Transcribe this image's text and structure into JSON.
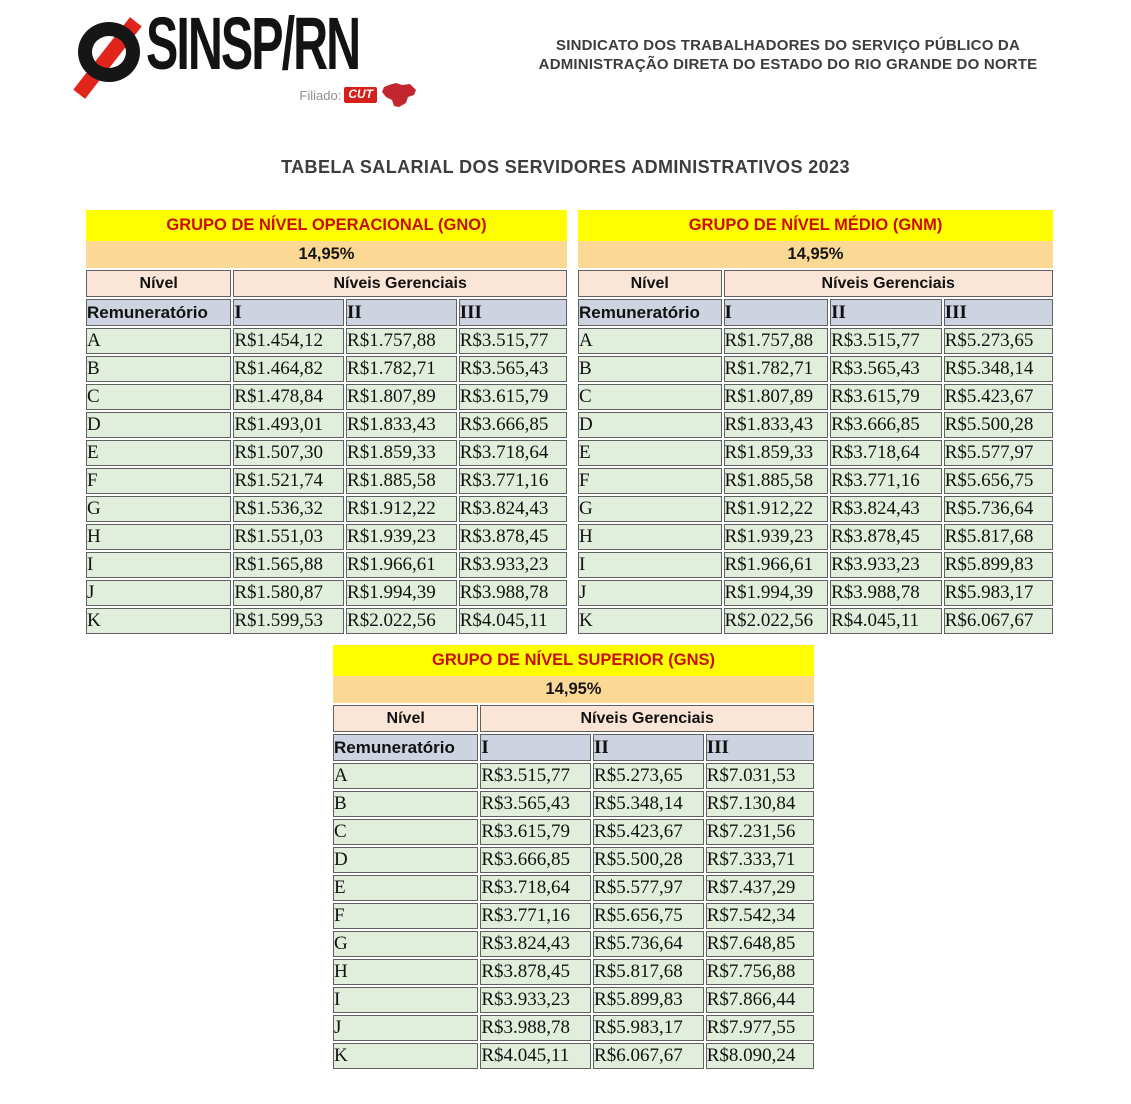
{
  "header": {
    "logo": {
      "icon": "no-symbol-logo-icon",
      "brand": "SINSP/RN",
      "affiliation_prefix": "Filiado:",
      "affiliation_badge": "CUT",
      "affiliation_map_icon": "brazil-map-icon"
    },
    "org_line1": "SINDICATO DOS TRABALHADORES DO SERVIÇO PÚBLICO DA",
    "org_line2": "ADMINISTRAÇÃO DIRETA DO ESTADO DO RIO GRANDE DO NORTE"
  },
  "title": "TABELA SALARIAL DOS SERVIDORES ADMINISTRATIVOS 2023",
  "colors": {
    "band_title_bg": "#ffff00",
    "band_title_text": "#c90e00",
    "band_percent_bg": "#fbd995",
    "header_pink_bg": "#fbe5d6",
    "header_bluegray_bg": "#cdd3e0",
    "data_cell_green_bg": "#e2eedc",
    "cell_border": "#606060",
    "logo_red": "#e1251b",
    "logo_black": "#161616"
  },
  "tables": [
    {
      "title": "GRUPO DE NÍVEL OPERACIONAL (GNO)",
      "percent": "14,95%",
      "headers": {
        "nivel": "Nível",
        "gerenciais": "Níveis Gerenciais",
        "remuneratorio": "Remuneratório",
        "levels": [
          "I",
          "II",
          "III"
        ]
      },
      "rows": [
        {
          "label": "A",
          "values": [
            "R$1.454,12",
            "R$1.757,88",
            "R$3.515,77"
          ]
        },
        {
          "label": "B",
          "values": [
            "R$1.464,82",
            "R$1.782,71",
            "R$3.565,43"
          ]
        },
        {
          "label": "C",
          "values": [
            "R$1.478,84",
            "R$1.807,89",
            "R$3.615,79"
          ]
        },
        {
          "label": "D",
          "values": [
            "R$1.493,01",
            "R$1.833,43",
            "R$3.666,85"
          ]
        },
        {
          "label": "E",
          "values": [
            "R$1.507,30",
            "R$1.859,33",
            "R$3.718,64"
          ]
        },
        {
          "label": "F",
          "values": [
            "R$1.521,74",
            "R$1.885,58",
            "R$3.771,16"
          ]
        },
        {
          "label": "G",
          "values": [
            "R$1.536,32",
            "R$1.912,22",
            "R$3.824,43"
          ]
        },
        {
          "label": "H",
          "values": [
            "R$1.551,03",
            "R$1.939,23",
            "R$3.878,45"
          ]
        },
        {
          "label": "I",
          "values": [
            "R$1.565,88",
            "R$1.966,61",
            "R$3.933,23"
          ]
        },
        {
          "label": "J",
          "values": [
            "R$1.580,87",
            "R$1.994,39",
            "R$3.988,78"
          ]
        },
        {
          "label": "K",
          "values": [
            "R$1.599,53",
            "R$2.022,56",
            "R$4.045,11"
          ]
        }
      ]
    },
    {
      "title": "GRUPO DE NÍVEL MÉDIO (GNM)",
      "percent": "14,95%",
      "headers": {
        "nivel": "Nível",
        "gerenciais": "Níveis Gerenciais",
        "remuneratorio": "Remuneratório",
        "levels": [
          "I",
          "II",
          "III"
        ]
      },
      "rows": [
        {
          "label": "A",
          "values": [
            "R$1.757,88",
            "R$3.515,77",
            "R$5.273,65"
          ]
        },
        {
          "label": "B",
          "values": [
            "R$1.782,71",
            "R$3.565,43",
            "R$5.348,14"
          ]
        },
        {
          "label": "C",
          "values": [
            "R$1.807,89",
            "R$3.615,79",
            "R$5.423,67"
          ]
        },
        {
          "label": "D",
          "values": [
            "R$1.833,43",
            "R$3.666,85",
            "R$5.500,28"
          ]
        },
        {
          "label": "E",
          "values": [
            "R$1.859,33",
            "R$3.718,64",
            "R$5.577,97"
          ]
        },
        {
          "label": "F",
          "values": [
            "R$1.885,58",
            "R$3.771,16",
            "R$5.656,75"
          ]
        },
        {
          "label": "G",
          "values": [
            "R$1.912,22",
            "R$3.824,43",
            "R$5.736,64"
          ]
        },
        {
          "label": "H",
          "values": [
            "R$1.939,23",
            "R$3.878,45",
            "R$5.817,68"
          ]
        },
        {
          "label": "I",
          "values": [
            "R$1.966,61",
            "R$3.933,23",
            "R$5.899,83"
          ]
        },
        {
          "label": "J",
          "values": [
            "R$1.994,39",
            "R$3.988,78",
            "R$5.983,17"
          ]
        },
        {
          "label": "K",
          "values": [
            "R$2.022,56",
            "R$4.045,11",
            "R$6.067,67"
          ]
        }
      ]
    },
    {
      "title": "GRUPO DE NÍVEL SUPERIOR (GNS)",
      "percent": "14,95%",
      "headers": {
        "nivel": "Nível",
        "gerenciais": "Níveis Gerenciais",
        "remuneratorio": "Remuneratório",
        "levels": [
          "I",
          "II",
          "III"
        ]
      },
      "rows": [
        {
          "label": "A",
          "values": [
            "R$3.515,77",
            "R$5.273,65",
            "R$7.031,53"
          ]
        },
        {
          "label": "B",
          "values": [
            "R$3.565,43",
            "R$5.348,14",
            "R$7.130,84"
          ]
        },
        {
          "label": "C",
          "values": [
            "R$3.615,79",
            "R$5.423,67",
            "R$7.231,56"
          ]
        },
        {
          "label": "D",
          "values": [
            "R$3.666,85",
            "R$5.500,28",
            "R$7.333,71"
          ]
        },
        {
          "label": "E",
          "values": [
            "R$3.718,64",
            "R$5.577,97",
            "R$7.437,29"
          ]
        },
        {
          "label": "F",
          "values": [
            "R$3.771,16",
            "R$5.656,75",
            "R$7.542,34"
          ]
        },
        {
          "label": "G",
          "values": [
            "R$3.824,43",
            "R$5.736,64",
            "R$7.648,85"
          ]
        },
        {
          "label": "H",
          "values": [
            "R$3.878,45",
            "R$5.817,68",
            "R$7.756,88"
          ]
        },
        {
          "label": "I",
          "values": [
            "R$3.933,23",
            "R$5.899,83",
            "R$7.866,44"
          ]
        },
        {
          "label": "J",
          "values": [
            "R$3.988,78",
            "R$5.983,17",
            "R$7.977,55"
          ]
        },
        {
          "label": "K",
          "values": [
            "R$4.045,11",
            "R$6.067,67",
            "R$8.090,24"
          ]
        }
      ]
    }
  ]
}
